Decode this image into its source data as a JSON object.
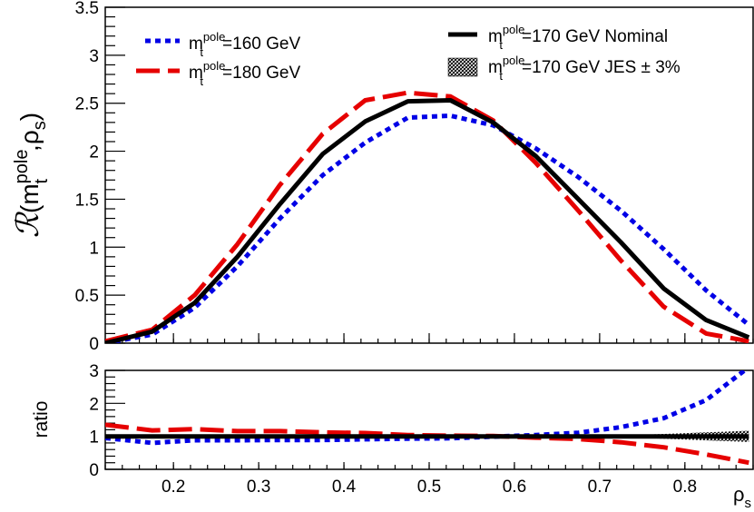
{
  "chart_data": {
    "type": "line",
    "xlabel": "ρs",
    "ylabel_main": "ℛ(m_t^pole, ρs)",
    "ylabel_ratio": "ratio",
    "xlim": [
      0.12,
      0.88
    ],
    "ylim_main": [
      0,
      3.5
    ],
    "ylim_ratio": [
      0,
      3
    ],
    "x_ticks": [
      0.2,
      0.3,
      0.4,
      0.5,
      0.6,
      0.7,
      0.8
    ],
    "y_ticks_main": [
      0,
      0.5,
      1,
      1.5,
      2,
      2.5,
      3,
      3.5
    ],
    "y_ticks_ratio": [
      0,
      1,
      2,
      3
    ],
    "x": [
      0.12,
      0.175,
      0.225,
      0.275,
      0.325,
      0.375,
      0.425,
      0.475,
      0.525,
      0.575,
      0.625,
      0.675,
      0.725,
      0.775,
      0.825,
      0.875
    ],
    "series": [
      {
        "name": "m_t^pole=170 GeV Nominal",
        "legend_main": "m",
        "legend_sup": "pole",
        "legend_sub": "t",
        "legend_rest": "=170 GeV Nominal",
        "color": "#000000",
        "style": "solid",
        "values": [
          0.0,
          0.12,
          0.42,
          0.9,
          1.45,
          1.97,
          2.31,
          2.52,
          2.53,
          2.3,
          1.95,
          1.5,
          1.05,
          0.57,
          0.24,
          0.06
        ]
      },
      {
        "name": "m_t^pole=160 GeV",
        "legend_main": "m",
        "legend_sup": "pole",
        "legend_sub": "t",
        "legend_rest": "=160 GeV",
        "color": "#0000e6",
        "style": "dotted",
        "values": [
          0.0,
          0.09,
          0.37,
          0.8,
          1.3,
          1.75,
          2.09,
          2.35,
          2.37,
          2.27,
          2.03,
          1.73,
          1.38,
          0.98,
          0.55,
          0.19
        ]
      },
      {
        "name": "m_t^pole=180 GeV",
        "legend_main": "m",
        "legend_sup": "pole",
        "legend_sub": "t",
        "legend_rest": "=180 GeV",
        "color": "#e60000",
        "style": "dashed",
        "values": [
          0.02,
          0.14,
          0.5,
          1.03,
          1.65,
          2.18,
          2.53,
          2.61,
          2.57,
          2.32,
          1.88,
          1.38,
          0.86,
          0.38,
          0.1,
          0.02
        ]
      }
    ],
    "band": {
      "name": "m_t^pole=170 GeV JES ± 3%",
      "legend_main": "m",
      "legend_sup": "pole",
      "legend_sub": "t",
      "legend_rest": "=170 GeV JES ± 3%",
      "color": "#000000",
      "style": "hatched"
    },
    "ratio_series": [
      {
        "name": "m_t^pole=170 GeV Nominal",
        "color": "#000000",
        "style": "solid",
        "values": [
          1,
          1,
          1,
          1,
          1,
          1,
          1,
          1,
          1,
          1,
          1,
          1,
          1,
          1,
          1,
          1
        ]
      },
      {
        "name": "m_t^pole=160 GeV",
        "color": "#0000e6",
        "style": "dotted",
        "values": [
          0.95,
          0.8,
          0.88,
          0.88,
          0.89,
          0.89,
          0.91,
          0.93,
          0.94,
          0.99,
          1.04,
          1.11,
          1.28,
          1.55,
          2.1,
          3.1
        ]
      },
      {
        "name": "m_t^pole=180 GeV",
        "color": "#e60000",
        "style": "dashed",
        "values": [
          1.35,
          1.18,
          1.22,
          1.16,
          1.16,
          1.12,
          1.1,
          1.04,
          1.02,
          1.01,
          0.96,
          0.92,
          0.82,
          0.67,
          0.45,
          0.2
        ]
      }
    ],
    "ratio_band": {
      "x": [
        0.7,
        0.875
      ],
      "halfwidth_start": 0.0,
      "halfwidth_end": 0.17
    }
  }
}
